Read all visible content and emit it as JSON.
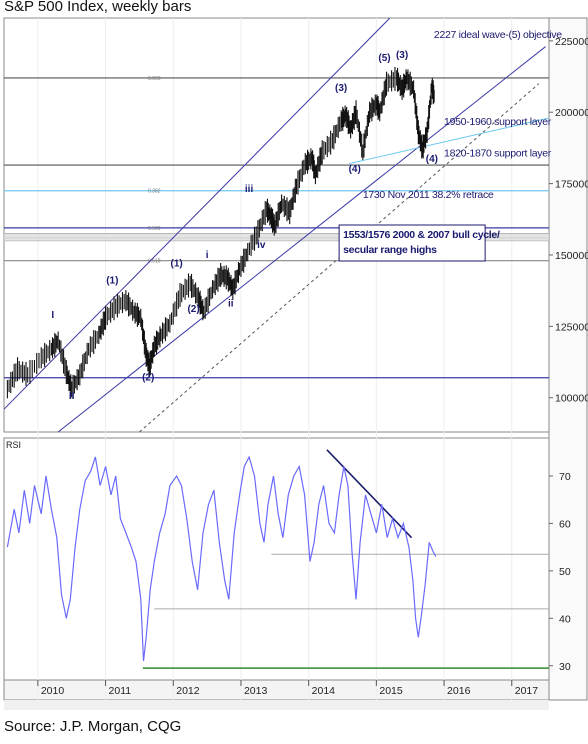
{
  "title": "S&P 500 Index, weekly bars",
  "source": "Source: J.P. Morgan, CQG",
  "chart_data": [
    {
      "type": "bar",
      "name": "price",
      "title": "S&P 500 Index, weekly bars",
      "ylim": [
        88000,
        233000
      ],
      "ticks": [
        {
          "v": 225000,
          "label": "225000"
        },
        {
          "v": 200000,
          "label": "200000"
        },
        {
          "v": 175000,
          "label": "175000"
        },
        {
          "v": 150000,
          "label": "150000"
        },
        {
          "v": 125000,
          "label": "125000"
        },
        {
          "v": 100000,
          "label": "100000"
        }
      ],
      "xlim": [
        2009.5,
        2017.55
      ],
      "series_points": [
        [
          2009.55,
          103000
        ],
        [
          2009.7,
          110000
        ],
        [
          2009.85,
          108000
        ],
        [
          2010.05,
          114000
        ],
        [
          2010.2,
          117000
        ],
        [
          2010.3,
          120000
        ],
        [
          2010.42,
          109000
        ],
        [
          2010.5,
          103000
        ],
        [
          2010.62,
          108000
        ],
        [
          2010.75,
          117000
        ],
        [
          2010.9,
          122000
        ],
        [
          2011.0,
          128000
        ],
        [
          2011.15,
          132000
        ],
        [
          2011.3,
          134000
        ],
        [
          2011.42,
          130000
        ],
        [
          2011.52,
          128000
        ],
        [
          2011.6,
          115000
        ],
        [
          2011.65,
          111000
        ],
        [
          2011.72,
          118000
        ],
        [
          2011.82,
          122000
        ],
        [
          2011.95,
          126000
        ],
        [
          2012.1,
          136000
        ],
        [
          2012.25,
          140000
        ],
        [
          2012.37,
          135000
        ],
        [
          2012.45,
          130000
        ],
        [
          2012.58,
          138000
        ],
        [
          2012.7,
          143000
        ],
        [
          2012.8,
          142000
        ],
        [
          2012.88,
          138000
        ],
        [
          2012.98,
          145000
        ],
        [
          2013.1,
          151000
        ],
        [
          2013.25,
          158000
        ],
        [
          2013.38,
          166000
        ],
        [
          2013.45,
          163000
        ],
        [
          2013.5,
          160000
        ],
        [
          2013.6,
          168000
        ],
        [
          2013.72,
          165000
        ],
        [
          2013.82,
          174000
        ],
        [
          2013.95,
          182000
        ],
        [
          2014.05,
          184000
        ],
        [
          2014.1,
          178000
        ],
        [
          2014.2,
          186000
        ],
        [
          2014.35,
          190000
        ],
        [
          2014.48,
          197000
        ],
        [
          2014.55,
          199000
        ],
        [
          2014.62,
          194000
        ],
        [
          2014.7,
          200000
        ],
        [
          2014.8,
          186000
        ],
        [
          2014.9,
          200000
        ],
        [
          2015.0,
          203000
        ],
        [
          2015.05,
          200000
        ],
        [
          2015.15,
          210000
        ],
        [
          2015.3,
          212000
        ],
        [
          2015.38,
          208000
        ],
        [
          2015.45,
          212000
        ],
        [
          2015.55,
          208000
        ],
        [
          2015.62,
          193000
        ],
        [
          2015.68,
          187000
        ],
        [
          2015.75,
          193000
        ],
        [
          2015.82,
          209000
        ],
        [
          2015.86,
          205000
        ]
      ],
      "h_levels": [
        {
          "v": 212000,
          "color": "#555555"
        },
        {
          "v": 181500,
          "color": "#555555"
        },
        {
          "v": 172500,
          "color": "#6ec8f0"
        },
        {
          "v": 159500,
          "color": "#3a3aa8"
        },
        {
          "v": 157500,
          "color": "#aaaaaa"
        },
        {
          "v": 156000,
          "color": "#cccccc"
        },
        {
          "v": 155000,
          "color": "#bbbbbb"
        },
        {
          "v": 148000,
          "color": "#888888"
        },
        {
          "v": 107000,
          "color": "#3a3aa8"
        }
      ],
      "level_tags": [
        {
          "v": 212000,
          "label": "0.000"
        },
        {
          "v": 172500,
          "label": "0.382"
        },
        {
          "v": 159500,
          "label": "0.500"
        },
        {
          "v": 148000,
          "label": "0.618"
        }
      ],
      "channel_lines": [
        {
          "from": [
            2009.5,
            96000
          ],
          "to": [
            2015.2,
            233000
          ],
          "color": "#3a3aa8",
          "dash": false
        },
        {
          "from": [
            2010.3,
            88000
          ],
          "to": [
            2017.5,
            223000
          ],
          "color": "#3a3aa8",
          "dash": false
        },
        {
          "from": [
            2011.5,
            88000
          ],
          "to": [
            2017.4,
            210000
          ],
          "color": "#555555",
          "dash": true
        },
        {
          "from": [
            2014.6,
            182000
          ],
          "to": [
            2017.55,
            198000
          ],
          "color": "#6ec8f0",
          "dash": false
        }
      ],
      "annotations": [
        {
          "text": "2227 ideal wave-(5) objective",
          "x": 2015.85,
          "y": 226000
        },
        {
          "text": "1950-1960 support layer",
          "x": 2016.0,
          "y": 195500
        },
        {
          "text": "1820-1870 support layer",
          "x": 2016.0,
          "y": 184500
        },
        {
          "text": "1730 Nov 2011 38.2% retrace",
          "x": 2014.8,
          "y": 170000
        }
      ],
      "boxed_note": [
        "1553/1576 2000 & 2007 bull cycle/",
        "secular range highs"
      ],
      "wave_labels": [
        {
          "text": "I",
          "x": 2010.22,
          "y": 128000
        },
        {
          "text": "II",
          "x": 2010.5,
          "y": 99500
        },
        {
          "text": "(1)",
          "x": 2011.1,
          "y": 140000
        },
        {
          "text": "(2)",
          "x": 2011.63,
          "y": 106000
        },
        {
          "text": "(1)",
          "x": 2012.05,
          "y": 146000
        },
        {
          "text": "i",
          "x": 2012.5,
          "y": 149000
        },
        {
          "text": "(2)",
          "x": 2012.3,
          "y": 130000
        },
        {
          "text": "ii",
          "x": 2012.85,
          "y": 132000
        },
        {
          "text": "iii",
          "x": 2013.12,
          "y": 172000
        },
        {
          "text": "iv",
          "x": 2013.3,
          "y": 152500
        },
        {
          "text": "(3)",
          "x": 2014.48,
          "y": 207500
        },
        {
          "text": "(4)",
          "x": 2014.68,
          "y": 179000
        },
        {
          "text": "(5)",
          "x": 2015.12,
          "y": 218000
        },
        {
          "text": "(3)",
          "x": 2015.38,
          "y": 219000
        },
        {
          "text": "(4)",
          "x": 2015.82,
          "y": 182500
        }
      ]
    },
    {
      "type": "line",
      "name": "rsi",
      "panel_label": "RSI",
      "ylim": [
        27,
        78
      ],
      "ticks": [
        {
          "v": 70,
          "label": "70"
        },
        {
          "v": 60,
          "label": "60"
        },
        {
          "v": 50,
          "label": "50"
        },
        {
          "v": 40,
          "label": "40"
        },
        {
          "v": 30,
          "label": "30"
        }
      ],
      "x_categories": [
        "2010",
        "2011",
        "2012",
        "2013",
        "2014",
        "2015",
        "2016",
        "2017"
      ],
      "series_points": [
        [
          2009.55,
          55
        ],
        [
          2009.65,
          63
        ],
        [
          2009.72,
          58
        ],
        [
          2009.8,
          67
        ],
        [
          2009.88,
          60
        ],
        [
          2009.95,
          68
        ],
        [
          2010.05,
          62
        ],
        [
          2010.12,
          70
        ],
        [
          2010.2,
          63
        ],
        [
          2010.28,
          57
        ],
        [
          2010.35,
          45
        ],
        [
          2010.42,
          40
        ],
        [
          2010.48,
          44
        ],
        [
          2010.55,
          55
        ],
        [
          2010.62,
          63
        ],
        [
          2010.7,
          69
        ],
        [
          2010.78,
          71
        ],
        [
          2010.85,
          74
        ],
        [
          2010.92,
          68
        ],
        [
          2011.0,
          72
        ],
        [
          2011.08,
          66
        ],
        [
          2011.15,
          70
        ],
        [
          2011.22,
          61
        ],
        [
          2011.3,
          58
        ],
        [
          2011.38,
          55
        ],
        [
          2011.45,
          52
        ],
        [
          2011.52,
          44
        ],
        [
          2011.56,
          31
        ],
        [
          2011.6,
          36
        ],
        [
          2011.66,
          46
        ],
        [
          2011.72,
          52
        ],
        [
          2011.8,
          58
        ],
        [
          2011.88,
          62
        ],
        [
          2011.95,
          68
        ],
        [
          2012.05,
          70
        ],
        [
          2012.12,
          68
        ],
        [
          2012.2,
          61
        ],
        [
          2012.28,
          52
        ],
        [
          2012.36,
          46
        ],
        [
          2012.44,
          58
        ],
        [
          2012.52,
          64
        ],
        [
          2012.6,
          67
        ],
        [
          2012.68,
          56
        ],
        [
          2012.76,
          48
        ],
        [
          2012.82,
          44
        ],
        [
          2012.9,
          58
        ],
        [
          2012.98,
          66
        ],
        [
          2013.05,
          72
        ],
        [
          2013.12,
          74
        ],
        [
          2013.2,
          70
        ],
        [
          2013.28,
          60
        ],
        [
          2013.34,
          56
        ],
        [
          2013.4,
          64
        ],
        [
          2013.48,
          70
        ],
        [
          2013.55,
          62
        ],
        [
          2013.62,
          57
        ],
        [
          2013.7,
          66
        ],
        [
          2013.78,
          70
        ],
        [
          2013.86,
          72
        ],
        [
          2013.94,
          66
        ],
        [
          2014.02,
          52
        ],
        [
          2014.08,
          56
        ],
        [
          2014.15,
          64
        ],
        [
          2014.22,
          68
        ],
        [
          2014.3,
          60
        ],
        [
          2014.38,
          58
        ],
        [
          2014.45,
          66
        ],
        [
          2014.52,
          72
        ],
        [
          2014.58,
          68
        ],
        [
          2014.64,
          54
        ],
        [
          2014.7,
          44
        ],
        [
          2014.76,
          56
        ],
        [
          2014.84,
          66
        ],
        [
          2014.92,
          62
        ],
        [
          2015.0,
          58
        ],
        [
          2015.08,
          64
        ],
        [
          2015.16,
          57
        ],
        [
          2015.24,
          61
        ],
        [
          2015.32,
          57
        ],
        [
          2015.4,
          60
        ],
        [
          2015.48,
          55
        ],
        [
          2015.54,
          48
        ],
        [
          2015.58,
          40
        ],
        [
          2015.62,
          36
        ],
        [
          2015.66,
          40
        ],
        [
          2015.72,
          47
        ],
        [
          2015.78,
          56
        ],
        [
          2015.84,
          54
        ],
        [
          2015.88,
          53
        ]
      ],
      "ref_lines": [
        {
          "v": 53.5,
          "from": 2013.45,
          "to": 2017.55,
          "color": "#aaaaaa"
        },
        {
          "v": 42,
          "from": 2011.72,
          "to": 2017.55,
          "color": "#aaaaaa"
        },
        {
          "v": 29.5,
          "from": 2011.55,
          "to": 2017.55,
          "color": "#2e8b2e"
        }
      ],
      "trend_line": {
        "from": [
          2014.27,
          75.5
        ],
        "to": [
          2015.52,
          57
        ],
        "color": "#1a1a6e"
      }
    }
  ]
}
